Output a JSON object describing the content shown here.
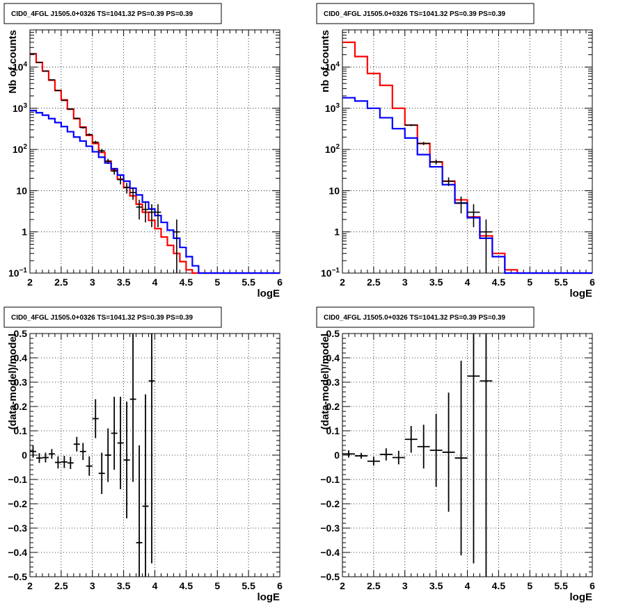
{
  "colors": {
    "data": "#000000",
    "model_total": "#ff0000",
    "model_source": "#0000ff",
    "grid": "#000000"
  },
  "chart_data": [
    {
      "type": "line",
      "title": "CID0_4FGL J1505.0+0326 TS=1041.32 PS=0.39 PS=0.39",
      "xlabel": "logE",
      "ylabel": "Nb of counts",
      "log_y": true,
      "xlim": [
        2,
        6
      ],
      "ylim": [
        0.1,
        80000
      ],
      "grid": true,
      "x_ticks": [
        "2",
        "2.5",
        "3",
        "3.5",
        "4",
        "4.5",
        "5",
        "5.5",
        "6"
      ],
      "y_ticks": [
        "10^-1",
        "1",
        "10",
        "10^2",
        "10^3",
        "10^4"
      ],
      "bin_edges": [
        2.0,
        2.1,
        2.2,
        2.3,
        2.4,
        2.5,
        2.6,
        2.7,
        2.8,
        2.9,
        3.0,
        3.1,
        3.2,
        3.3,
        3.4,
        3.5,
        3.6,
        3.7,
        3.8,
        3.9,
        4.0,
        4.1,
        4.2,
        4.3,
        4.4,
        4.5,
        4.6,
        4.7,
        4.8,
        4.9,
        5.0,
        5.1,
        5.2,
        5.3,
        5.4,
        5.5,
        5.6,
        5.7,
        5.8,
        5.9,
        6.0
      ],
      "series": [
        {
          "style": "step",
          "color": "#ff0000",
          "values": [
            21000,
            13000,
            8000,
            4800,
            2700,
            1600,
            950,
            560,
            350,
            220,
            140,
            85,
            52,
            31,
            19,
            12,
            7.5,
            4.7,
            3,
            1.9,
            1.2,
            0.75,
            0.47,
            0.3,
            0.19,
            0.12,
            0.1,
            0.1,
            0.1,
            0.1,
            0.1,
            0.1,
            0.1,
            0.1,
            0.1,
            0.1,
            0.1,
            0.1,
            0.1,
            0.1
          ]
        },
        {
          "style": "step",
          "color": "#0000ff",
          "values": [
            880,
            780,
            680,
            560,
            450,
            360,
            270,
            200,
            160,
            120,
            88,
            65,
            47,
            34,
            24,
            17,
            11.5,
            7.9,
            5.3,
            3.6,
            2.5,
            1.7,
            1.1,
            0.7,
            0.42,
            0.25,
            0.15,
            0.1,
            0.1,
            0.1,
            0.1,
            0.1,
            0.1,
            0.1,
            0.1,
            0.1,
            0.1,
            0.1,
            0.1,
            0.1
          ]
        },
        {
          "style": "points",
          "color": "#000000",
          "x": [
            2.05,
            2.15,
            2.25,
            2.35,
            2.45,
            2.55,
            2.65,
            2.75,
            2.85,
            2.95,
            3.05,
            3.15,
            3.25,
            3.35,
            3.45,
            3.55,
            3.65,
            3.75,
            3.85,
            3.95,
            4.05,
            4.35
          ],
          "y": [
            21000,
            13000,
            8000,
            4900,
            2700,
            1550,
            960,
            570,
            340,
            230,
            150,
            93,
            52,
            30,
            18.5,
            12,
            9,
            4,
            3.5,
            3,
            3,
            1
          ],
          "err": [
            145,
            114,
            89,
            70,
            52,
            39,
            31,
            24,
            18,
            15,
            12,
            9.6,
            7.2,
            5.5,
            4.3,
            3.5,
            3,
            2,
            1.8,
            1.7,
            1.7,
            1
          ]
        }
      ]
    },
    {
      "type": "line",
      "title": "CID0_4FGL J1505.0+0326 TS=1041.32 PS=0.39 PS=0.39",
      "xlabel": "logE",
      "ylabel": "nb of counts",
      "log_y": true,
      "xlim": [
        2,
        6
      ],
      "ylim": [
        0.1,
        80000
      ],
      "grid": true,
      "x_ticks": [
        "2",
        "2.5",
        "3",
        "3.5",
        "4",
        "4.5",
        "5",
        "5.5",
        "6"
      ],
      "y_ticks": [
        "10^-1",
        "1",
        "10",
        "10^2",
        "10^3",
        "10^4"
      ],
      "bin_edges": [
        2.0,
        2.2,
        2.4,
        2.6,
        2.8,
        3.0,
        3.2,
        3.4,
        3.6,
        3.8,
        4.0,
        4.2,
        4.4,
        4.6,
        4.8,
        5.0,
        5.2,
        5.4,
        5.6,
        5.8,
        6.0
      ],
      "series": [
        {
          "style": "step",
          "color": "#ff0000",
          "values": [
            40000,
            18000,
            7000,
            3600,
            1000,
            390,
            140,
            50,
            17,
            6,
            2.3,
            0.8,
            0.3,
            0.12,
            0.1,
            0.1,
            0.1,
            0.1,
            0.1,
            0.1
          ]
        },
        {
          "style": "step",
          "color": "#0000ff",
          "values": [
            1800,
            1500,
            1000,
            590,
            320,
            190,
            75,
            38,
            14,
            5,
            2.2,
            0.7,
            0.25,
            0.1,
            0.1,
            0.1,
            0.1,
            0.1,
            0.1,
            0.1
          ]
        },
        {
          "style": "points",
          "color": "#000000",
          "x": [
            3.1,
            3.3,
            3.5,
            3.7,
            3.9,
            4.1,
            4.3
          ],
          "y": [
            390,
            140,
            50,
            17,
            5,
            3,
            1
          ],
          "err": [
            20,
            12,
            7,
            4,
            2.2,
            1.7,
            1
          ]
        }
      ]
    },
    {
      "type": "scatter",
      "title": "CID0_4FGL J1505.0+0326 TS=1041.32 PS=0.39 PS=0.39",
      "xlabel": "logE",
      "ylabel": "(data-model)/model",
      "xlim": [
        2,
        6
      ],
      "ylim": [
        -0.5,
        0.5
      ],
      "grid": true,
      "x_ticks": [
        "2",
        "2.5",
        "3",
        "3.5",
        "4",
        "4.5",
        "5",
        "5.5",
        "6"
      ],
      "y_ticks": [
        "-0.5",
        "-0.4",
        "-0.3",
        "-0.2",
        "-0.1",
        "0",
        "0.1",
        "0.2",
        "0.3",
        "0.4",
        "0.5"
      ],
      "series": [
        {
          "style": "errorbars",
          "color": "#000000",
          "xerr": 0.05,
          "x": [
            2.05,
            2.15,
            2.25,
            2.35,
            2.45,
            2.55,
            2.65,
            2.75,
            2.85,
            2.95,
            3.05,
            3.15,
            3.25,
            3.35,
            3.45,
            3.55,
            3.65,
            3.75,
            3.85,
            3.95
          ],
          "y": [
            0.015,
            -0.012,
            -0.01,
            0.005,
            -0.03,
            -0.028,
            -0.032,
            0.045,
            0.015,
            -0.045,
            0.15,
            -0.075,
            0.0,
            0.09,
            0.05,
            -0.02,
            0.23,
            -0.36,
            -0.21,
            0.305
          ],
          "err": [
            0.025,
            0.02,
            0.02,
            0.02,
            0.025,
            0.025,
            0.025,
            0.03,
            0.035,
            0.04,
            0.08,
            0.085,
            0.11,
            0.15,
            0.19,
            0.24,
            0.34,
            0.4,
            0.46,
            0.75
          ]
        }
      ]
    },
    {
      "type": "scatter",
      "title": "CID0_4FGL J1505.0+0326 TS=1041.32 PS=0.39 PS=0.39",
      "xlabel": "logE",
      "ylabel": "(data-model)/model",
      "xlim": [
        2,
        6
      ],
      "ylim": [
        -0.5,
        0.5
      ],
      "grid": true,
      "x_ticks": [
        "2",
        "2.5",
        "3",
        "3.5",
        "4",
        "4.5",
        "5",
        "5.5",
        "6"
      ],
      "y_ticks": [
        "-0.5",
        "-0.4",
        "-0.3",
        "-0.2",
        "-0.1",
        "0",
        "0.1",
        "0.2",
        "0.3",
        "0.4",
        "0.5"
      ],
      "series": [
        {
          "style": "errorbars",
          "color": "#000000",
          "xerr": 0.1,
          "x": [
            2.1,
            2.3,
            2.5,
            2.7,
            2.9,
            3.1,
            3.3,
            3.5,
            3.7,
            3.9,
            4.1,
            4.3
          ],
          "y": [
            0.005,
            -0.003,
            -0.025,
            0.003,
            -0.01,
            0.065,
            0.035,
            0.02,
            0.012,
            -0.012,
            0.325,
            0.305
          ],
          "err": [
            0.015,
            0.012,
            0.018,
            0.025,
            0.028,
            0.055,
            0.09,
            0.15,
            0.245,
            0.4,
            0.77,
            0.9
          ]
        }
      ]
    }
  ]
}
